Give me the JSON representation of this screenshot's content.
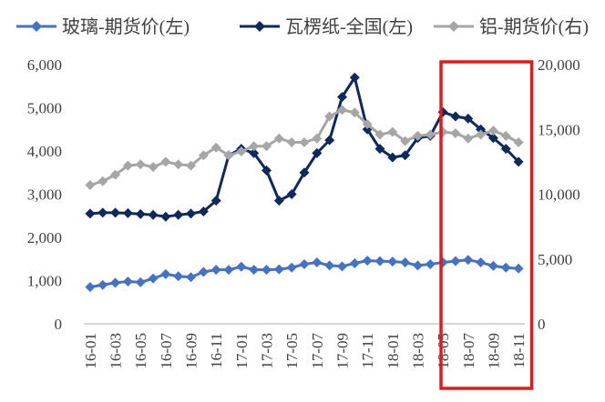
{
  "chart_data": {
    "type": "line",
    "title": "",
    "xlabel": "",
    "ylabel": "",
    "y_left_lim": [
      0,
      6000
    ],
    "y_left_ticks": [
      "0",
      "1,000",
      "2,000",
      "3,000",
      "4,000",
      "5,000",
      "6,000"
    ],
    "y_left_tick_values": [
      0,
      1000,
      2000,
      3000,
      4000,
      5000,
      6000
    ],
    "y_right_lim": [
      0,
      20000
    ],
    "y_right_ticks": [
      "0",
      "5,000",
      "10,000",
      "15,000",
      "20,000"
    ],
    "y_right_tick_values": [
      0,
      5000,
      10000,
      15000,
      20000
    ],
    "grid": false,
    "legend_position": "top",
    "categories": [
      "16-01",
      "16-02",
      "16-03",
      "16-04",
      "16-05",
      "16-06",
      "16-07",
      "16-08",
      "16-09",
      "16-10",
      "16-11",
      "16-12",
      "17-01",
      "17-02",
      "17-03",
      "17-04",
      "17-05",
      "17-06",
      "17-07",
      "17-08",
      "17-09",
      "17-10",
      "17-11",
      "17-12",
      "18-01",
      "18-02",
      "18-03",
      "18-04",
      "18-05",
      "18-06",
      "18-07",
      "18-08",
      "18-09",
      "18-10",
      "18-11"
    ],
    "x_tick_labels": [
      "16-01",
      "16-03",
      "16-05",
      "16-07",
      "16-09",
      "16-11",
      "17-01",
      "17-03",
      "17-05",
      "17-07",
      "17-09",
      "17-11",
      "18-01",
      "18-03",
      "18-05",
      "18-07",
      "18-09",
      "18-11"
    ],
    "series": [
      {
        "name": "玻璃-期货价(左)",
        "axis": "left",
        "color": "#4472c4",
        "marker": "diamond",
        "values": [
          850,
          900,
          950,
          980,
          960,
          1050,
          1150,
          1100,
          1080,
          1200,
          1250,
          1250,
          1320,
          1250,
          1250,
          1260,
          1300,
          1380,
          1420,
          1350,
          1330,
          1400,
          1460,
          1450,
          1440,
          1420,
          1350,
          1380,
          1420,
          1450,
          1480,
          1420,
          1340,
          1300,
          1280
        ]
      },
      {
        "name": "瓦楞纸-全国(左)",
        "axis": "left",
        "color": "#0d2a5e",
        "marker": "diamond",
        "values": [
          2550,
          2570,
          2570,
          2560,
          2540,
          2520,
          2480,
          2520,
          2550,
          2600,
          2850,
          3900,
          4050,
          3950,
          3550,
          2850,
          3000,
          3500,
          3950,
          4250,
          5250,
          5700,
          4500,
          4050,
          3850,
          3900,
          4300,
          4350,
          4900,
          4800,
          4750,
          4500,
          4300,
          4050,
          3750
        ]
      },
      {
        "name": "铝-期货价(右)",
        "axis": "right",
        "color": "#a6a6a6",
        "marker": "diamond",
        "values": [
          10700,
          11000,
          11500,
          12200,
          12300,
          12100,
          12500,
          12300,
          12200,
          13000,
          13600,
          13000,
          13300,
          13700,
          13700,
          14300,
          14000,
          14000,
          14300,
          16000,
          16500,
          16300,
          15400,
          14600,
          14800,
          14100,
          14500,
          14600,
          14800,
          14700,
          14300,
          14600,
          14900,
          14500,
          14000
        ]
      }
    ],
    "annotation": {
      "type": "highlight-box",
      "color": "#e31a1c",
      "covers": "18-06 to 18-11"
    }
  }
}
